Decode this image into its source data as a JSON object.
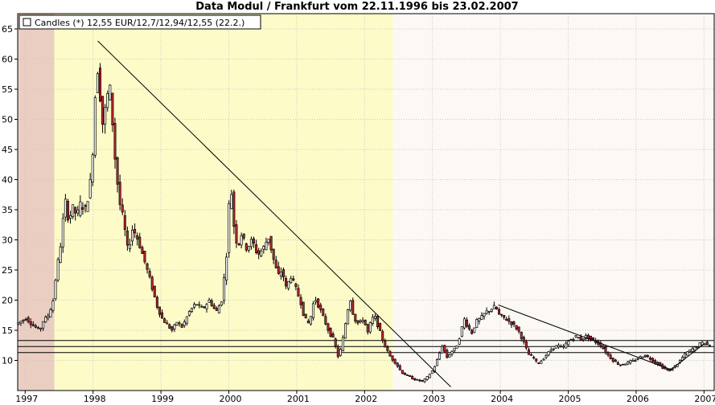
{
  "chart_data": {
    "type": "candlestick",
    "title": "Data Modul / Frankfurt vom 22.11.1996 bis 23.02.2007",
    "legend": {
      "label": "Candles (*) 12,55 EUR/12,7/12,94/12,55 (22.2.)",
      "position": "top-left"
    },
    "xlabel": "",
    "ylabel": "",
    "ylim": [
      5,
      65
    ],
    "xlim": [
      1996.89,
      2007.15
    ],
    "yticks": [
      10,
      15,
      20,
      25,
      30,
      35,
      40,
      45,
      50,
      55,
      60,
      65
    ],
    "xticks": [
      {
        "label": "1997",
        "x": 1997.0
      },
      {
        "label": "1998",
        "x": 1998.0
      },
      {
        "label": "1999",
        "x": 1999.0
      },
      {
        "label": "2000",
        "x": 2000.0
      },
      {
        "label": "2001",
        "x": 2001.0
      },
      {
        "label": "2002",
        "x": 2002.0
      },
      {
        "label": "2003",
        "x": 2003.0
      },
      {
        "label": "2004",
        "x": 2004.0
      },
      {
        "label": "2005",
        "x": 2005.0
      },
      {
        "label": "2006",
        "x": 2006.0
      },
      {
        "label": "2007",
        "x": 2007.0
      }
    ],
    "grid": true,
    "colors": {
      "up_candle": "#ffffff",
      "down_candle": "#c0282e",
      "outline": "#000000",
      "line": "#000000"
    },
    "background_bands": [
      {
        "from": 1996.89,
        "to": 1997.43,
        "color": "#ebcec2"
      },
      {
        "from": 1997.43,
        "to": 2002.42,
        "color": "#fdfbc8"
      },
      {
        "from": 2002.42,
        "to": 2007.15,
        "color": "#fcf8f4"
      }
    ],
    "horizontal_lines": [
      13.3,
      12.3,
      11.3
    ],
    "trendlines": [
      {
        "points": [
          [
            1998.07,
            63.0
          ],
          [
            2003.27,
            5.6
          ]
        ]
      },
      {
        "points": [
          [
            2003.97,
            19.2
          ],
          [
            2006.55,
            8.3
          ]
        ]
      },
      {
        "points": [
          [
            2006.48,
            8.2
          ],
          [
            2007.02,
            12.9
          ]
        ]
      }
    ],
    "price_path": [
      [
        1996.9,
        16.0
      ],
      [
        1997.05,
        17.0
      ],
      [
        1997.15,
        15.8
      ],
      [
        1997.25,
        15.0
      ],
      [
        1997.3,
        16.5
      ],
      [
        1997.38,
        17.5
      ],
      [
        1997.45,
        20.0
      ],
      [
        1997.5,
        25.0
      ],
      [
        1997.57,
        30.0
      ],
      [
        1997.62,
        37.0
      ],
      [
        1997.68,
        33.0
      ],
      [
        1997.73,
        35.5
      ],
      [
        1997.8,
        34.0
      ],
      [
        1997.85,
        36.0
      ],
      [
        1997.92,
        35.0
      ],
      [
        1997.97,
        37.5
      ],
      [
        1998.0,
        40.0
      ],
      [
        1998.04,
        46.0
      ],
      [
        1998.09,
        60.0
      ],
      [
        1998.14,
        54.0
      ],
      [
        1998.18,
        49.0
      ],
      [
        1998.22,
        52.0
      ],
      [
        1998.28,
        56.0
      ],
      [
        1998.32,
        50.0
      ],
      [
        1998.37,
        42.0
      ],
      [
        1998.43,
        36.0
      ],
      [
        1998.48,
        33.5
      ],
      [
        1998.55,
        28.0
      ],
      [
        1998.62,
        32.0
      ],
      [
        1998.7,
        30.0
      ],
      [
        1998.78,
        27.0
      ],
      [
        1998.86,
        24.0
      ],
      [
        1998.92,
        21.5
      ],
      [
        1998.98,
        19.0
      ],
      [
        1999.05,
        17.0
      ],
      [
        1999.12,
        16.0
      ],
      [
        1999.2,
        15.0
      ],
      [
        1999.28,
        16.5
      ],
      [
        1999.35,
        15.5
      ],
      [
        1999.45,
        18.0
      ],
      [
        1999.55,
        19.5
      ],
      [
        1999.65,
        18.5
      ],
      [
        1999.75,
        20.0
      ],
      [
        1999.85,
        18.0
      ],
      [
        1999.93,
        20.0
      ],
      [
        2000.0,
        27.0
      ],
      [
        2000.04,
        36.0
      ],
      [
        2000.08,
        38.0
      ],
      [
        2000.12,
        31.0
      ],
      [
        2000.17,
        29.0
      ],
      [
        2000.22,
        31.0
      ],
      [
        2000.3,
        28.5
      ],
      [
        2000.38,
        30.0
      ],
      [
        2000.46,
        27.5
      ],
      [
        2000.54,
        28.5
      ],
      [
        2000.62,
        30.5
      ],
      [
        2000.7,
        26.5
      ],
      [
        2000.76,
        24.0
      ],
      [
        2000.82,
        25.0
      ],
      [
        2000.88,
        22.0
      ],
      [
        2000.95,
        24.0
      ],
      [
        2001.02,
        22.0
      ],
      [
        2001.1,
        19.5
      ],
      [
        2001.15,
        17.0
      ],
      [
        2001.22,
        16.0
      ],
      [
        2001.3,
        20.5
      ],
      [
        2001.38,
        18.5
      ],
      [
        2001.45,
        16.5
      ],
      [
        2001.52,
        14.5
      ],
      [
        2001.58,
        13.5
      ],
      [
        2001.65,
        10.5
      ],
      [
        2001.7,
        12.5
      ],
      [
        2001.76,
        16.5
      ],
      [
        2001.82,
        20.5
      ],
      [
        2001.88,
        17.0
      ],
      [
        2001.95,
        16.0
      ],
      [
        2002.02,
        17.0
      ],
      [
        2002.08,
        14.5
      ],
      [
        2002.13,
        16.5
      ],
      [
        2002.18,
        17.5
      ],
      [
        2002.24,
        15.5
      ],
      [
        2002.3,
        13.5
      ],
      [
        2002.35,
        12.0
      ],
      [
        2002.42,
        10.5
      ],
      [
        2002.5,
        9.5
      ],
      [
        2002.58,
        8.0
      ],
      [
        2002.66,
        7.5
      ],
      [
        2002.74,
        7.0
      ],
      [
        2002.82,
        6.7
      ],
      [
        2002.9,
        6.5
      ],
      [
        2002.98,
        7.5
      ],
      [
        2003.05,
        8.5
      ],
      [
        2003.12,
        10.5
      ],
      [
        2003.18,
        12.5
      ],
      [
        2003.25,
        10.5
      ],
      [
        2003.32,
        11.5
      ],
      [
        2003.38,
        12.0
      ],
      [
        2003.44,
        14.0
      ],
      [
        2003.5,
        17.0
      ],
      [
        2003.56,
        15.5
      ],
      [
        2003.62,
        14.5
      ],
      [
        2003.68,
        16.5
      ],
      [
        2003.75,
        17.0
      ],
      [
        2003.82,
        18.0
      ],
      [
        2003.9,
        18.5
      ],
      [
        2003.96,
        19.0
      ],
      [
        2004.02,
        17.5
      ],
      [
        2004.1,
        17.0
      ],
      [
        2004.16,
        16.5
      ],
      [
        2004.22,
        16.0
      ],
      [
        2004.3,
        15.0
      ],
      [
        2004.38,
        13.0
      ],
      [
        2004.45,
        11.0
      ],
      [
        2004.52,
        10.5
      ],
      [
        2004.58,
        9.5
      ],
      [
        2004.65,
        10.0
      ],
      [
        2004.72,
        11.0
      ],
      [
        2004.8,
        12.0
      ],
      [
        2004.88,
        12.5
      ],
      [
        2004.95,
        12.0
      ],
      [
        2005.02,
        13.0
      ],
      [
        2005.08,
        13.5
      ],
      [
        2005.15,
        14.0
      ],
      [
        2005.22,
        13.5
      ],
      [
        2005.3,
        14.0
      ],
      [
        2005.38,
        13.5
      ],
      [
        2005.45,
        13.0
      ],
      [
        2005.52,
        12.5
      ],
      [
        2005.58,
        11.5
      ],
      [
        2005.65,
        10.5
      ],
      [
        2005.72,
        9.8
      ],
      [
        2005.8,
        9.2
      ],
      [
        2005.88,
        9.5
      ],
      [
        2005.95,
        9.8
      ],
      [
        2006.02,
        10.0
      ],
      [
        2006.08,
        10.5
      ],
      [
        2006.15,
        10.8
      ],
      [
        2006.22,
        10.5
      ],
      [
        2006.3,
        9.8
      ],
      [
        2006.38,
        9.3
      ],
      [
        2006.45,
        8.6
      ],
      [
        2006.52,
        8.4
      ],
      [
        2006.58,
        8.8
      ],
      [
        2006.65,
        9.5
      ],
      [
        2006.72,
        10.5
      ],
      [
        2006.78,
        11.3
      ],
      [
        2006.85,
        11.8
      ],
      [
        2006.92,
        12.2
      ],
      [
        2006.98,
        12.8
      ],
      [
        2007.04,
        12.9
      ],
      [
        2007.08,
        12.6
      ],
      [
        2007.12,
        12.55
      ]
    ]
  }
}
